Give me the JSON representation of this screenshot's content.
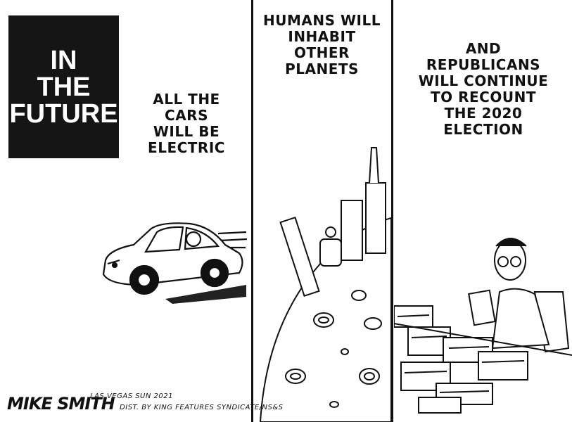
{
  "panel1": {
    "title_lines": [
      "IN",
      "THE",
      "FUTURE"
    ],
    "caption_lines": [
      "ALL THE",
      "CARS",
      "WILL BE",
      "ELECTRIC"
    ]
  },
  "panel2": {
    "caption_lines": [
      "HUMANS WILL",
      "INHABIT",
      "OTHER",
      "PLANETS"
    ]
  },
  "panel3": {
    "caption_lines": [
      "AND",
      "REPUBLICANS",
      "WILL CONTINUE",
      "TO RECOUNT",
      "THE 2020",
      "ELECTION"
    ]
  },
  "footer": {
    "signature": "MIKE SMITH",
    "credit_line1": "LAS VEGAS SUN 2021",
    "credit_line2": "DIST. BY KING FEATURES SYNDICATE/NS&S"
  }
}
